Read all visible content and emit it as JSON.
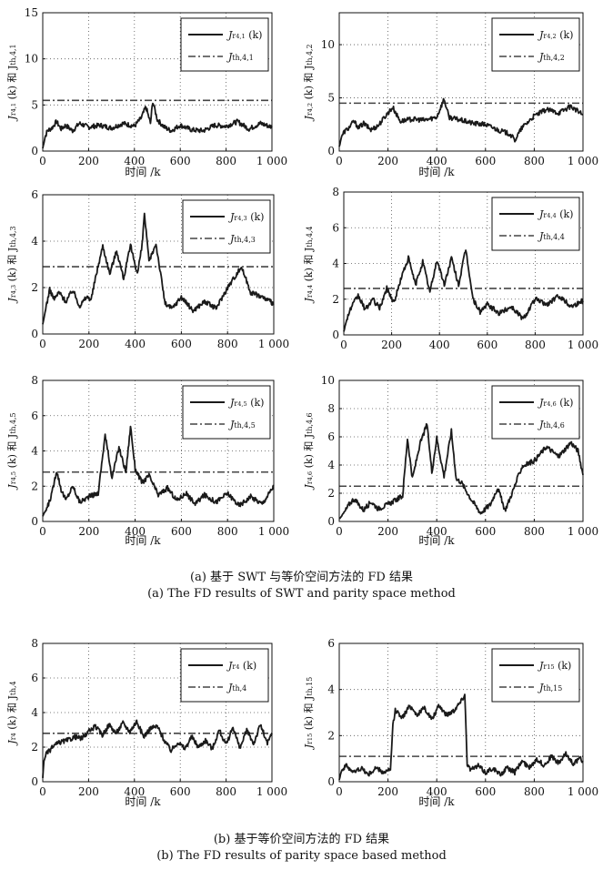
{
  "captions": {
    "a_zh": "(a) 基于 SWT 与等价空间方法的 FD 结果",
    "a_en": "(a) The FD results of SWT and parity space method",
    "b_zh": "(b) 基于等价空间方法的 FD 结果",
    "b_en": "(b) The FD results of parity space based method"
  },
  "chart_data": [
    {
      "type": "line",
      "grid": true,
      "legend_position": "top-right",
      "xlabel": "时间 /k",
      "ylabel": "J_{r_{4,1}} (k) 和 J_{th,4,1}",
      "xlim": [
        0,
        1000
      ],
      "ylim": [
        0,
        15
      ],
      "xticks": [
        "0",
        "200",
        "400",
        "600",
        "800",
        "1 000"
      ],
      "yticks": [
        "0",
        "5",
        "10",
        "15"
      ],
      "threshold": 5.5,
      "legend": [
        "J_{r_{4,1}} (k)",
        "J_{th,4,1}"
      ],
      "series": [
        {
          "name": "J_{r_{4,1}} (k)",
          "x": [
            0,
            10,
            20,
            40,
            60,
            80,
            100,
            130,
            160,
            200,
            250,
            300,
            350,
            400,
            430,
            450,
            470,
            480,
            500,
            530,
            560,
            600,
            650,
            700,
            750,
            800,
            850,
            900,
            950,
            1000
          ],
          "y": [
            0.3,
            1.5,
            2.2,
            2.5,
            3.2,
            2.4,
            2.8,
            2.2,
            3.0,
            2.6,
            2.8,
            2.5,
            3.0,
            2.7,
            3.6,
            4.8,
            3.0,
            5.4,
            3.4,
            2.6,
            2.2,
            2.8,
            2.3,
            2.2,
            2.8,
            2.7,
            3.2,
            2.4,
            3.0,
            2.6
          ]
        },
        {
          "name": "J_{th,4,1}",
          "x": [
            0,
            1000
          ],
          "y": [
            5.5,
            5.5
          ]
        }
      ]
    },
    {
      "type": "line",
      "grid": true,
      "legend_position": "top-right",
      "xlabel": "时间 /k",
      "ylabel": "J_{r_{4,2}} (k) 和 J_{th,4,2}",
      "xlim": [
        0,
        1000
      ],
      "ylim": [
        0,
        13
      ],
      "xticks": [
        "0",
        "200",
        "400",
        "600",
        "800",
        "1 000"
      ],
      "yticks": [
        "0",
        "5",
        "10"
      ],
      "threshold": 4.5,
      "legend": [
        "J_{r_{4,2}} (k)",
        "J_{th,4,2}"
      ],
      "series": [
        {
          "name": "J_{r_{4,2}} (k)",
          "x": [
            0,
            10,
            20,
            40,
            60,
            80,
            100,
            130,
            160,
            200,
            220,
            250,
            300,
            350,
            400,
            430,
            450,
            480,
            500,
            550,
            600,
            650,
            700,
            720,
            750,
            800,
            850,
            900,
            950,
            1000
          ],
          "y": [
            0.4,
            1.4,
            1.8,
            2.2,
            2.8,
            2.2,
            2.6,
            2.0,
            2.4,
            3.6,
            4.1,
            2.8,
            3.0,
            2.9,
            3.2,
            4.9,
            3.2,
            3.0,
            2.9,
            2.6,
            2.5,
            2.0,
            1.6,
            1.0,
            2.2,
            3.3,
            3.9,
            3.6,
            4.2,
            3.4
          ]
        },
        {
          "name": "J_{th,4,2}",
          "x": [
            0,
            1000
          ],
          "y": [
            4.5,
            4.5
          ]
        }
      ]
    },
    {
      "type": "line",
      "grid": true,
      "legend_position": "top-right",
      "xlabel": "",
      "ylabel": "J_{r_{4,3}} (k) 和 J_{th,4,3}",
      "xlim": [
        0,
        1000
      ],
      "ylim": [
        0,
        6
      ],
      "xticks": [
        "0",
        "200",
        "400",
        "600",
        "800",
        "1 000"
      ],
      "yticks": [
        "0",
        "2",
        "4",
        "6"
      ],
      "threshold": 2.9,
      "legend": [
        "J_{r_{4,3}} (k)",
        "J_{th,4,3}"
      ],
      "series": [
        {
          "name": "J_{r_{4,3}} (k)",
          "x": [
            0,
            15,
            30,
            50,
            70,
            100,
            130,
            160,
            190,
            210,
            230,
            260,
            290,
            320,
            350,
            380,
            410,
            430,
            440,
            460,
            490,
            510,
            530,
            560,
            600,
            650,
            700,
            750,
            800,
            860,
            900,
            950,
            1000
          ],
          "y": [
            0.4,
            1.2,
            1.9,
            1.5,
            1.8,
            1.4,
            1.9,
            1.2,
            1.6,
            1.5,
            2.5,
            3.8,
            2.6,
            3.6,
            2.4,
            3.8,
            2.6,
            3.8,
            5.2,
            3.1,
            3.9,
            2.6,
            1.3,
            1.1,
            1.6,
            1.0,
            1.4,
            1.1,
            2.0,
            2.9,
            1.8,
            1.6,
            1.3
          ]
        },
        {
          "name": "J_{th,4,3}",
          "x": [
            0,
            1000
          ],
          "y": [
            2.9,
            2.9
          ]
        }
      ]
    },
    {
      "type": "line",
      "grid": true,
      "legend_position": "top-right",
      "xlabel": "",
      "ylabel": "J_{r_{4,4}} (k) 和 J_{th,4,4}",
      "xlim": [
        0,
        1000
      ],
      "ylim": [
        0,
        8
      ],
      "xticks": [
        "0",
        "200",
        "400",
        "600",
        "800",
        "1 000"
      ],
      "yticks": [
        "0",
        "2",
        "4",
        "6",
        "8"
      ],
      "threshold": 2.6,
      "legend": [
        "J_{r_{4,4}} (k)",
        "J_{th,4,4}"
      ],
      "series": [
        {
          "name": "J_{r_{4,4}} (k)",
          "x": [
            0,
            15,
            30,
            60,
            90,
            120,
            150,
            180,
            210,
            240,
            270,
            300,
            330,
            360,
            390,
            420,
            450,
            480,
            510,
            540,
            570,
            600,
            650,
            700,
            750,
            800,
            850,
            900,
            950,
            1000
          ],
          "y": [
            0.2,
            1.0,
            1.5,
            2.2,
            1.4,
            2.0,
            1.5,
            2.6,
            1.8,
            3.2,
            4.3,
            2.8,
            4.1,
            2.4,
            4.2,
            2.8,
            4.3,
            2.8,
            4.8,
            2.0,
            1.3,
            1.7,
            1.2,
            1.6,
            0.9,
            2.0,
            1.7,
            2.2,
            1.6,
            1.9
          ]
        },
        {
          "name": "J_{th,4,4}",
          "x": [
            0,
            1000
          ],
          "y": [
            2.6,
            2.6
          ]
        }
      ]
    },
    {
      "type": "line",
      "grid": true,
      "legend_position": "top-right",
      "xlabel": "时间 /k",
      "ylabel": "J_{r_{4,5}} (k) 和 J_{th,4,5}",
      "xlim": [
        0,
        1000
      ],
      "ylim": [
        0,
        8
      ],
      "xticks": [
        "0",
        "200",
        "400",
        "600",
        "800",
        "1 000"
      ],
      "yticks": [
        "0",
        "2",
        "4",
        "6",
        "8"
      ],
      "threshold": 2.8,
      "legend": [
        "J_{r_{4,5}} (k)",
        "J_{th,4,5}"
      ],
      "series": [
        {
          "name": "J_{r_{4,5}} (k)",
          "x": [
            0,
            20,
            40,
            60,
            80,
            100,
            130,
            160,
            200,
            240,
            270,
            300,
            330,
            360,
            380,
            400,
            430,
            460,
            500,
            540,
            580,
            620,
            660,
            700,
            750,
            800,
            850,
            900,
            950,
            1000
          ],
          "y": [
            0.3,
            0.8,
            1.6,
            2.9,
            1.8,
            1.2,
            2.0,
            1.1,
            1.4,
            1.6,
            4.9,
            2.5,
            4.2,
            2.8,
            5.4,
            3.0,
            2.2,
            2.6,
            1.5,
            1.9,
            1.2,
            1.6,
            1.0,
            1.5,
            1.1,
            1.6,
            0.9,
            1.4,
            1.0,
            2.0
          ]
        },
        {
          "name": "J_{th,4,5}",
          "x": [
            0,
            1000
          ],
          "y": [
            2.8,
            2.8
          ]
        }
      ]
    },
    {
      "type": "line",
      "grid": true,
      "legend_position": "top-right",
      "xlabel": "时间 /k",
      "ylabel": "J_{r_{4,6}} (k) 和 J_{th,4,6}",
      "xlim": [
        0,
        1000
      ],
      "ylim": [
        0,
        10
      ],
      "xticks": [
        "0",
        "200",
        "400",
        "600",
        "800",
        "1 000"
      ],
      "yticks": [
        "0",
        "2",
        "4",
        "6",
        "8",
        "10"
      ],
      "threshold": 2.5,
      "legend": [
        "J_{r_{4,6}} (k)",
        "J_{th,4,6}"
      ],
      "series": [
        {
          "name": "J_{r_{4,6}} (k)",
          "x": [
            0,
            20,
            40,
            60,
            80,
            100,
            130,
            160,
            200,
            230,
            260,
            280,
            300,
            330,
            360,
            380,
            400,
            430,
            460,
            480,
            500,
            540,
            580,
            620,
            650,
            680,
            700,
            750,
            800,
            850,
            900,
            950,
            980,
            1000
          ],
          "y": [
            0.2,
            0.6,
            1.2,
            1.6,
            1.2,
            0.8,
            1.4,
            0.9,
            1.2,
            1.5,
            1.8,
            5.9,
            3.0,
            5.4,
            6.9,
            3.5,
            5.9,
            3.2,
            6.4,
            3.0,
            2.8,
            1.6,
            0.6,
            1.2,
            2.4,
            0.8,
            1.6,
            3.9,
            4.3,
            5.3,
            4.6,
            5.6,
            5.0,
            3.3
          ]
        },
        {
          "name": "J_{th,4,6}",
          "x": [
            0,
            1000
          ],
          "y": [
            2.5,
            2.5
          ]
        }
      ]
    },
    {
      "type": "line",
      "grid": true,
      "legend_position": "top-right",
      "xlabel": "时间 /k",
      "ylabel": "J_{r_4} (k) 和 J_{th,4}",
      "xlim": [
        0,
        1000
      ],
      "ylim": [
        0,
        8
      ],
      "xticks": [
        "0",
        "200",
        "400",
        "600",
        "800",
        "1 000"
      ],
      "yticks": [
        "0",
        "2",
        "4",
        "6",
        "8"
      ],
      "threshold": 2.8,
      "legend": [
        "J_{r_4} (k)",
        "J_{th,4}"
      ],
      "series": [
        {
          "name": "J_{r_4} (k)",
          "x": [
            0,
            5,
            15,
            30,
            50,
            80,
            110,
            140,
            170,
            200,
            230,
            260,
            290,
            320,
            350,
            380,
            410,
            440,
            470,
            500,
            530,
            560,
            590,
            620,
            650,
            680,
            710,
            740,
            770,
            800,
            830,
            860,
            890,
            920,
            950,
            980,
            1000
          ],
          "y": [
            0.2,
            1.2,
            1.6,
            1.8,
            2.1,
            2.3,
            2.4,
            2.6,
            2.5,
            2.9,
            3.2,
            2.7,
            3.3,
            2.8,
            3.4,
            2.9,
            3.5,
            2.6,
            3.1,
            3.2,
            2.4,
            1.8,
            2.3,
            1.9,
            2.6,
            2.0,
            2.4,
            1.9,
            3.0,
            2.1,
            3.2,
            1.9,
            3.0,
            2.2,
            3.3,
            2.2,
            2.8
          ]
        },
        {
          "name": "J_{th,4}",
          "x": [
            0,
            1000
          ],
          "y": [
            2.8,
            2.8
          ]
        }
      ]
    },
    {
      "type": "line",
      "grid": true,
      "legend_position": "top-right",
      "xlabel": "时间 /k",
      "ylabel": "J_{r_{15}} (k) 和 J_{th,15}",
      "xlim": [
        0,
        1000
      ],
      "ylim": [
        0,
        6
      ],
      "xticks": [
        "0",
        "200",
        "400",
        "600",
        "800",
        "1 000"
      ],
      "yticks": [
        "0",
        "2",
        "4",
        "6"
      ],
      "threshold": 1.1,
      "legend": [
        "J_{r_{15}} (k)",
        "J_{th,15}"
      ],
      "series": [
        {
          "name": "J_{r_{15}} (k)",
          "x": [
            0,
            10,
            30,
            60,
            90,
            120,
            150,
            180,
            210,
            220,
            230,
            260,
            290,
            320,
            350,
            380,
            410,
            440,
            470,
            500,
            515,
            525,
            540,
            570,
            600,
            630,
            660,
            690,
            720,
            750,
            780,
            810,
            840,
            870,
            900,
            930,
            960,
            990,
            1000
          ],
          "y": [
            0.1,
            0.5,
            0.7,
            0.4,
            0.6,
            0.3,
            0.6,
            0.4,
            0.5,
            2.4,
            3.1,
            2.8,
            3.3,
            2.9,
            3.2,
            2.7,
            3.3,
            2.9,
            3.1,
            3.5,
            3.8,
            0.8,
            0.5,
            0.7,
            0.4,
            0.6,
            0.3,
            0.6,
            0.4,
            0.9,
            0.6,
            1.0,
            0.7,
            1.1,
            0.8,
            1.2,
            0.8,
            1.0,
            0.9
          ]
        },
        {
          "name": "J_{th,15}",
          "x": [
            0,
            1000
          ],
          "y": [
            1.1,
            1.1
          ]
        }
      ]
    }
  ]
}
